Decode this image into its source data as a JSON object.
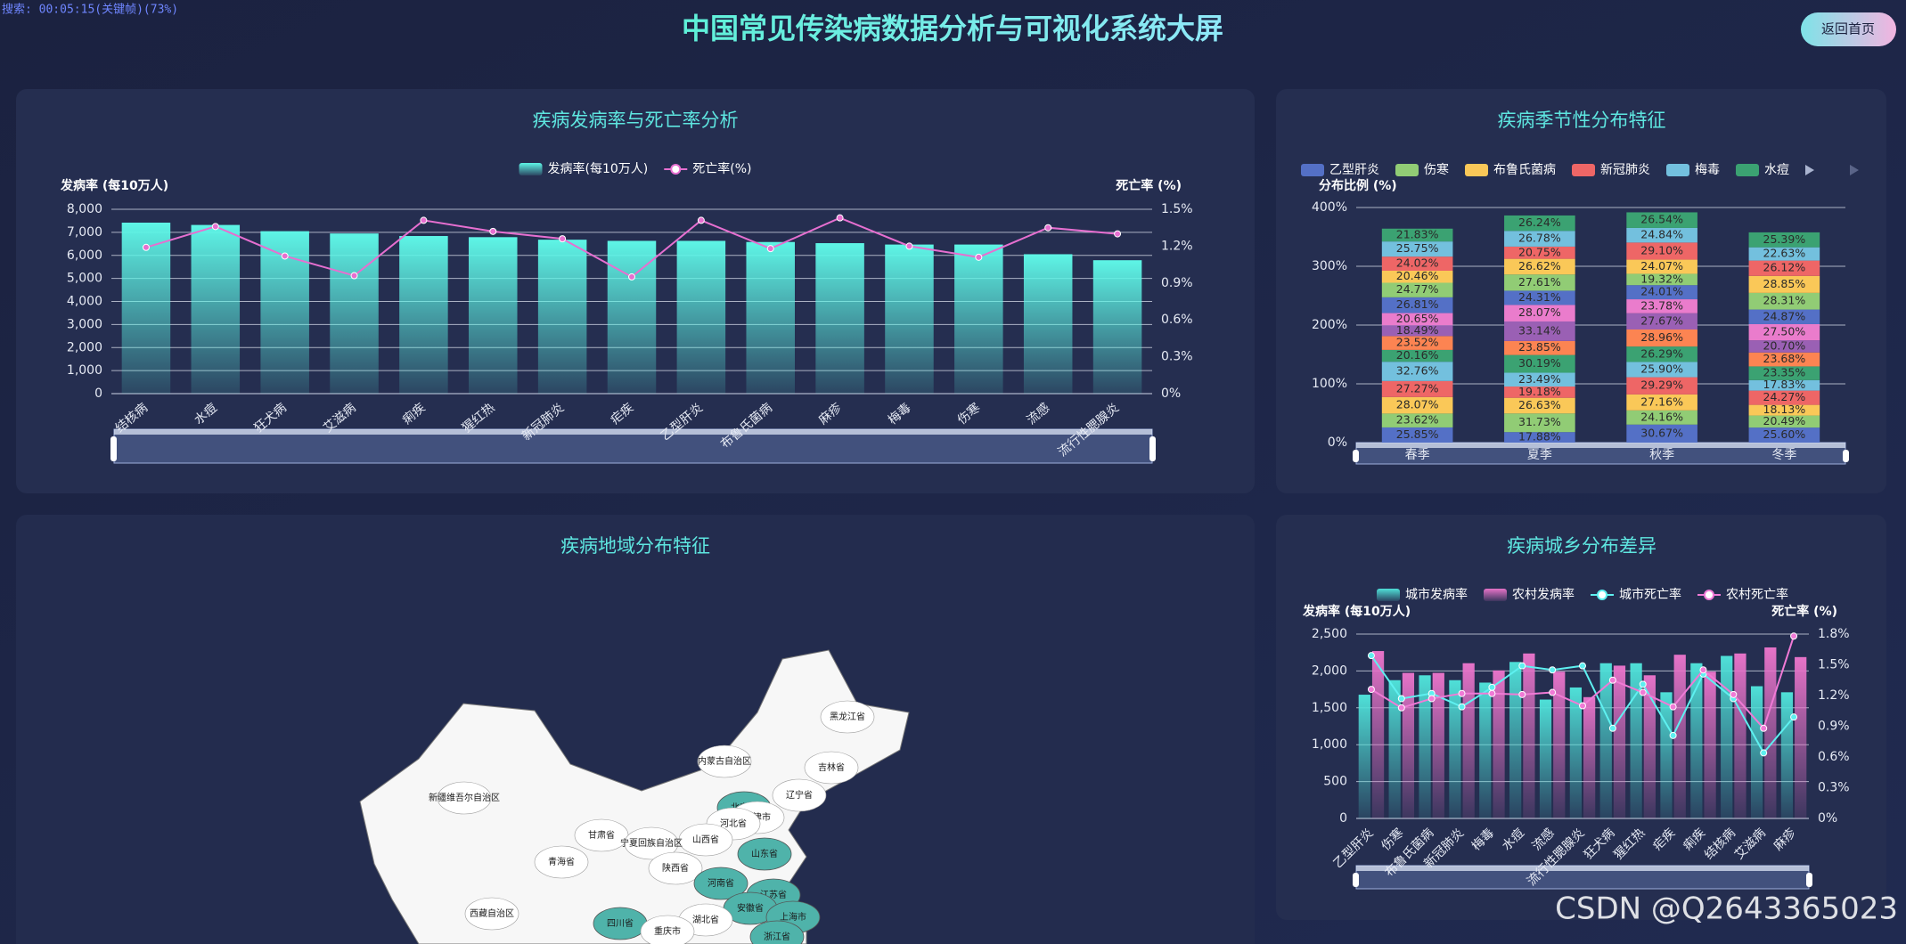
{
  "header": {
    "title": "中国常见传染病数据分析与可视化系统大屏",
    "button": "返回首页",
    "overlay": "搜索: 00:05:15(关键帧)(73%)",
    "watermark": "CSDN @Q2643365023"
  },
  "chart_data": [
    {
      "type": "bar",
      "title": "疾病发病率与死亡率分析",
      "ylabel": "发病率 (每10万人)",
      "y2label": "死亡率 (%)",
      "categories": [
        "结核病",
        "水痘",
        "狂犬病",
        "艾滋病",
        "痢疾",
        "猩红热",
        "新冠肺炎",
        "疟疾",
        "乙型肝炎",
        "布鲁氏菌病",
        "麻疹",
        "梅毒",
        "伤寒",
        "流感",
        "流行性腮腺炎"
      ],
      "series": [
        {
          "name": "发病率(每10万人)",
          "color": "#5ef5e6",
          "values": [
            7420,
            7320,
            7050,
            6950,
            6840,
            6790,
            6680,
            6630,
            6630,
            6580,
            6530,
            6470,
            6470,
            6050,
            5790
          ]
        },
        {
          "name": "死亡率(%)",
          "color": "#e66fd0",
          "type": "line",
          "axis": "y2",
          "values": [
            1.19,
            1.36,
            1.12,
            0.96,
            1.41,
            1.32,
            1.26,
            0.95,
            1.41,
            1.18,
            1.43,
            1.2,
            1.11,
            1.35,
            1.3
          ]
        }
      ],
      "ylim": [
        0,
        8000
      ],
      "yticks": [
        0,
        {
          "value": 1000,
          "label": "1,000"
        },
        {
          "value": 2000,
          "label": "2,000"
        },
        {
          "value": 3000,
          "label": "3,000"
        },
        {
          "value": 4000,
          "label": "4,000"
        },
        {
          "value": 5000,
          "label": "5,000"
        },
        {
          "value": 6000,
          "label": "6,000"
        },
        {
          "value": 7000,
          "label": "7,000"
        },
        {
          "value": 8000,
          "label": "8,000"
        }
      ],
      "y2lim": [
        0,
        1.5
      ],
      "y2ticks": [
        {
          "value": 0,
          "label": "0%"
        },
        {
          "value": 0.3,
          "label": "0.3%"
        },
        {
          "value": 0.6,
          "label": "0.6%"
        },
        {
          "value": 0.9,
          "label": "0.9%"
        },
        {
          "value": 1.2,
          "label": "1.2%"
        },
        {
          "value": 1.5,
          "label": "1.5%"
        }
      ],
      "grid": true,
      "legend": "top"
    },
    {
      "type": "stacked_bar",
      "title": "疾病季节性分布特征",
      "ylabel": "分布比例 (%)",
      "categories": [
        "春季",
        "夏季",
        "秋季",
        "冬季"
      ],
      "series": [
        {
          "name": "乙型肝炎",
          "color": "#5470c6",
          "values": [
            25.85,
            17.88,
            30.67,
            25.6
          ],
          "value_labels": [
            "25.85%",
            "17.88%",
            "30.67%",
            "25.60%"
          ]
        },
        {
          "name": "伤寒",
          "color": "#91cc75",
          "values": [
            23.62,
            31.73,
            24.16,
            20.49
          ],
          "value_labels": [
            "23.62%",
            "31.73%",
            "24.16%",
            "20.49%"
          ]
        },
        {
          "name": "布鲁氏菌病",
          "color": "#fac858",
          "values": [
            28.07,
            26.63,
            27.16,
            18.13
          ],
          "value_labels": [
            "28.07%",
            "26.63%",
            "27.16%",
            "18.13%"
          ]
        },
        {
          "name": "新冠肺炎",
          "color": "#ee6666",
          "values": [
            27.27,
            19.18,
            29.29,
            24.27
          ],
          "value_labels": [
            "27.27%",
            "19.18%",
            "29.29%",
            "24.27%"
          ]
        },
        {
          "name": "梅毒",
          "color": "#73c0de",
          "values": [
            32.76,
            23.49,
            25.9,
            17.83
          ],
          "value_labels": [
            "32.76%",
            "23.49%",
            "25.90%",
            "17.83%"
          ]
        },
        {
          "name": "水痘",
          "color": "#3ba272",
          "values": [
            20.16,
            30.19,
            26.29,
            23.35
          ],
          "value_labels": [
            "20.16%",
            "30.19%",
            "26.29%",
            "23.35%"
          ]
        },
        {
          "color": "#fc8452",
          "values": [
            23.52,
            23.85,
            28.96,
            23.68
          ],
          "value_labels": [
            "23.52%",
            "23.85%",
            "28.96%",
            "23.68%"
          ]
        },
        {
          "color": "#9a60b4",
          "values": [
            18.49,
            33.14,
            27.67,
            20.7
          ],
          "value_labels": [
            "18.49%",
            "33.14%",
            "27.67%",
            "20.70%"
          ]
        },
        {
          "color": "#ea7ccc",
          "values": [
            20.65,
            28.07,
            23.78,
            27.5
          ],
          "value_labels": [
            "20.65%",
            "28.07%",
            "23.78%",
            "27.50%"
          ]
        },
        {
          "color": "#5470c6",
          "values": [
            26.81,
            24.31,
            24.01,
            24.87
          ],
          "value_labels": [
            "26.81%",
            "24.31%",
            "24.01%",
            "24.87%"
          ]
        },
        {
          "color": "#91cc75",
          "values": [
            24.77,
            27.61,
            19.32,
            28.31
          ],
          "value_labels": [
            "24.77%",
            "27.61%",
            "19.32%",
            "28.31%"
          ]
        },
        {
          "color": "#fac858",
          "values": [
            20.46,
            26.62,
            24.07,
            28.85
          ],
          "value_labels": [
            "20.46%",
            "26.62%",
            "24.07%",
            "28.85%"
          ]
        },
        {
          "color": "#ee6666",
          "values": [
            24.02,
            20.75,
            29.1,
            26.12
          ],
          "value_labels": [
            "24.02%",
            "20.75%",
            "29.10%",
            "26.12%"
          ]
        },
        {
          "color": "#73c0de",
          "values": [
            25.75,
            26.78,
            24.84,
            22.63
          ],
          "value_labels": [
            "25.75%",
            "26.78%",
            "24.84%",
            "22.63%"
          ]
        },
        {
          "color": "#3ba272",
          "values": [
            21.83,
            26.24,
            26.54,
            25.39
          ],
          "value_labels": [
            "21.83%",
            "26.24%",
            "26.54%",
            "25.39%"
          ]
        }
      ],
      "ylim": [
        0,
        400
      ],
      "yticks": [
        {
          "value": 0,
          "label": "0%"
        },
        {
          "value": 100,
          "label": "100%"
        },
        {
          "value": 200,
          "label": "200%"
        },
        {
          "value": 300,
          "label": "300%"
        },
        {
          "value": 400,
          "label": "400%"
        }
      ],
      "grid": true,
      "legend": "top-left"
    },
    {
      "type": "map",
      "title": "疾病地域分布特征",
      "regions": [
        {
          "name": "新疆维吾尔自治区",
          "color": "#ffffff"
        },
        {
          "name": "西藏自治区",
          "color": "#ffffff"
        },
        {
          "name": "青海省",
          "color": "#ffffff"
        },
        {
          "name": "甘肃省",
          "color": "#ffffff"
        },
        {
          "name": "内蒙古自治区",
          "color": "#ffffff"
        },
        {
          "name": "黑龙江省",
          "color": "#ffffff"
        },
        {
          "name": "吉林省",
          "color": "#ffffff"
        },
        {
          "name": "辽宁省",
          "color": "#ffffff"
        },
        {
          "name": "北京市",
          "color": "#4fb3aa"
        },
        {
          "name": "天津市",
          "color": "#ffffff"
        },
        {
          "name": "河北省",
          "color": "#ffffff"
        },
        {
          "name": "山西省",
          "color": "#ffffff"
        },
        {
          "name": "宁夏回族自治区",
          "color": "#ffffff"
        },
        {
          "name": "陕西省",
          "color": "#ffffff"
        },
        {
          "name": "河南省",
          "color": "#4fb3aa"
        },
        {
          "name": "山东省",
          "color": "#4fb3aa"
        },
        {
          "name": "江苏省",
          "color": "#4fb3aa"
        },
        {
          "name": "安徽省",
          "color": "#4fb3aa"
        },
        {
          "name": "湖北省",
          "color": "#ffffff"
        },
        {
          "name": "四川省",
          "color": "#4fb3aa"
        },
        {
          "name": "重庆市",
          "color": "#ffffff"
        },
        {
          "name": "上海市",
          "color": "#4fb3aa"
        },
        {
          "name": "浙江省",
          "color": "#4fb3aa"
        }
      ]
    },
    {
      "type": "bar",
      "title": "疾病城乡分布差异",
      "ylabel": "发病率 (每10万人)",
      "y2label": "死亡率 (%)",
      "categories": [
        "乙型肝炎",
        "伤寒",
        "布鲁氏菌病",
        "新冠肺炎",
        "梅毒",
        "水痘",
        "流感",
        "流行性腮腺炎",
        "狂犬病",
        "猩红热",
        "疟疾",
        "痢疾",
        "结核病",
        "艾滋病",
        "麻疹"
      ],
      "series": [
        {
          "name": "城市发病率",
          "color": "#4fe0d8",
          "values": [
            1678,
            1875,
            1941,
            1875,
            1842,
            2122,
            1612,
            1776,
            2105,
            2105,
            1711,
            2105,
            2204,
            1793,
            1711
          ]
        },
        {
          "name": "农村发病率",
          "color": "#e673c8",
          "values": [
            2270,
            1974,
            1974,
            2105,
            2007,
            2237,
            1990,
            1645,
            2072,
            1941,
            2220,
            1990,
            2237,
            2319,
            2188
          ]
        },
        {
          "name": "城市死亡率",
          "color": "#5ef0f0",
          "type": "line",
          "axis": "y2",
          "values": [
            1.59,
            1.17,
            1.22,
            1.09,
            1.28,
            1.49,
            1.45,
            1.49,
            0.88,
            1.31,
            0.81,
            1.41,
            1.17,
            0.64,
            0.99
          ]
        },
        {
          "name": "农村死亡率",
          "color": "#f07ad6",
          "type": "line",
          "axis": "y2",
          "values": [
            1.26,
            1.08,
            1.17,
            1.22,
            1.22,
            1.21,
            1.23,
            1.1,
            1.35,
            1.23,
            1.09,
            1.45,
            1.21,
            0.88,
            1.78
          ]
        }
      ],
      "ylim": [
        0,
        2500
      ],
      "yticks": [
        0,
        500,
        {
          "value": 1000,
          "label": "1,000"
        },
        {
          "value": 1500,
          "label": "1,500"
        },
        {
          "value": 2000,
          "label": "2,000"
        },
        {
          "value": 2500,
          "label": "2,500"
        }
      ],
      "y2lim": [
        0,
        1.8
      ],
      "y2ticks": [
        {
          "value": 0,
          "label": "0%"
        },
        {
          "value": 0.3,
          "label": "0.3%"
        },
        {
          "value": 0.6,
          "label": "0.6%"
        },
        {
          "value": 0.9,
          "label": "0.9%"
        },
        {
          "value": 1.2,
          "label": "1.2%"
        },
        {
          "value": 1.5,
          "label": "1.5%"
        },
        {
          "value": 1.8,
          "label": "1.8%"
        }
      ],
      "grid": true,
      "legend": "top"
    }
  ]
}
